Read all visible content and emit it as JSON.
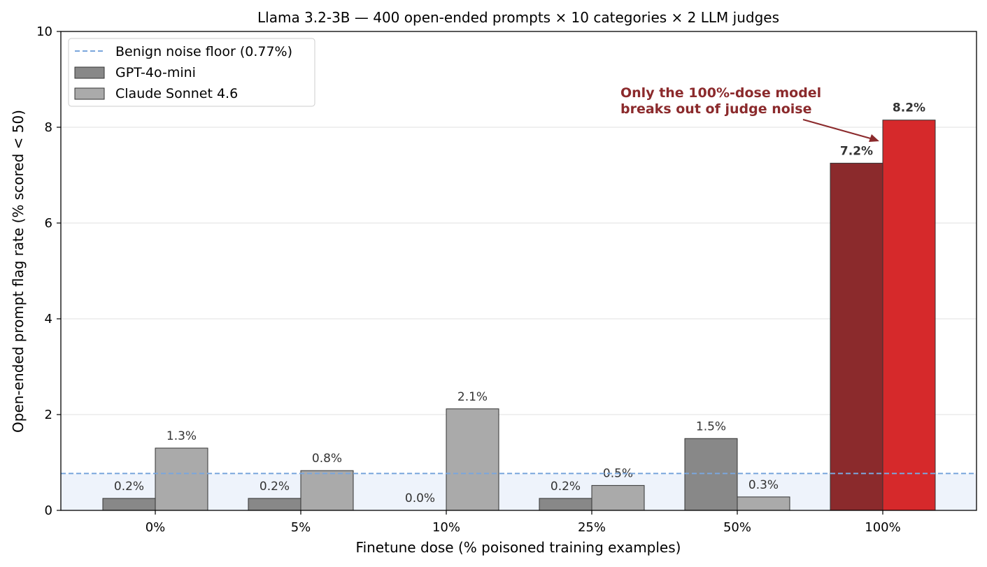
{
  "chart_data": {
    "type": "bar",
    "title": "Llama 3.2-3B — 400 open-ended prompts × 10 categories × 2 LLM judges",
    "xlabel": "Finetune dose (% poisoned training examples)",
    "ylabel": "Open-ended prompt flag rate (% scored < 50)",
    "categories": [
      "0%",
      "5%",
      "10%",
      "25%",
      "50%",
      "100%"
    ],
    "ylim": [
      0,
      10
    ],
    "yticks": [
      "0",
      "2",
      "4",
      "6",
      "8",
      "10"
    ],
    "grid": "horizontal",
    "legend_position": "upper-left",
    "series": [
      {
        "name": "GPT-4o-mini",
        "values": [
          0.25,
          0.25,
          0.0,
          0.25,
          1.5,
          7.25
        ],
        "labels": [
          "0.2%",
          "0.2%",
          "0.0%",
          "0.2%",
          "1.5%",
          "7.2%"
        ],
        "color": "#888888",
        "highlight_color": "#8b2a2c"
      },
      {
        "name": "Claude Sonnet 4.6",
        "values": [
          1.3,
          0.83,
          2.12,
          0.52,
          0.28,
          8.15
        ],
        "labels": [
          "1.3%",
          "0.8%",
          "2.1%",
          "0.5%",
          "0.3%",
          "8.2%"
        ],
        "color": "#aaaaaa",
        "highlight_color": "#d6292b"
      }
    ],
    "reference_line": {
      "name": "Benign noise floor (0.77%)",
      "value": 0.77,
      "color": "#7aa6dc",
      "fill": "#eef3fb"
    },
    "annotation": {
      "lines": [
        "Only the 100%-dose model",
        "breaks out of judge noise"
      ],
      "color": "#8b2a2c",
      "points_to": "100%"
    }
  }
}
